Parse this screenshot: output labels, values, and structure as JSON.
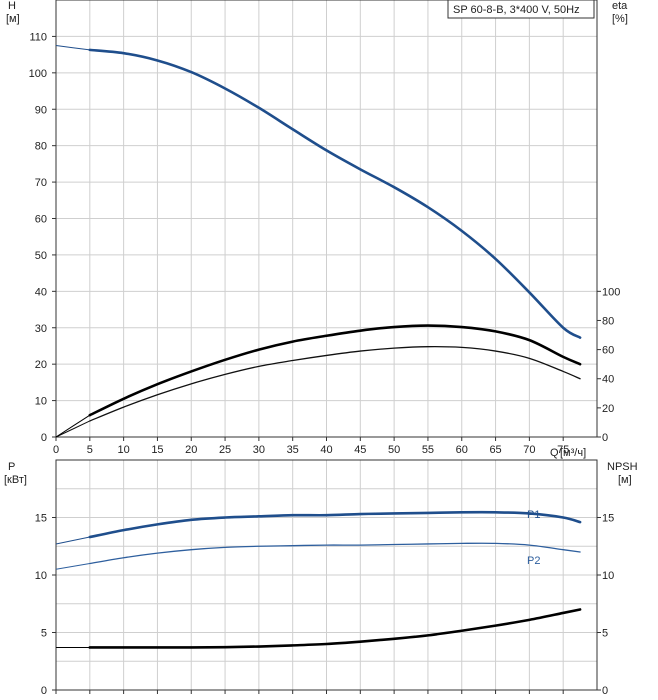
{
  "chart_data": [
    {
      "type": "line",
      "title": "SP 60-8-B, 3*400 V, 50Hz",
      "ylabel": "H",
      "ylabel_unit": "[м]",
      "y2label": "eta",
      "y2label_unit": "[%]",
      "xlabel": "Q",
      "xlabel_unit": "[м³/ч]",
      "xlim": [
        0,
        80
      ],
      "ylim": [
        0,
        120
      ],
      "y2lim": [
        0,
        100
      ],
      "x_ticks": [
        0,
        5,
        10,
        15,
        20,
        25,
        30,
        35,
        40,
        45,
        50,
        55,
        60,
        65,
        70,
        75
      ],
      "y_ticks": [
        0,
        10,
        20,
        30,
        40,
        50,
        60,
        70,
        80,
        90,
        100,
        110
      ],
      "y2_ticks": [
        0,
        20,
        40,
        60,
        80,
        100
      ],
      "grid": true,
      "series": [
        {
          "name": "",
          "axis": "left",
          "color": "#1f4e8c",
          "x": [
            5,
            10,
            15,
            20,
            25,
            30,
            35,
            40,
            45,
            50,
            55,
            60,
            65,
            70,
            75,
            77.5
          ],
          "y": [
            106.3,
            105.4,
            103.4,
            100.2,
            95.7,
            90.4,
            84.5,
            78.7,
            73.5,
            68.6,
            63.1,
            56.6,
            48.9,
            39.7,
            30.0,
            27.3
          ],
          "extrap_x": [
            0,
            5
          ],
          "extrap_y": [
            107.5,
            106.3
          ]
        },
        {
          "name": "",
          "axis": "right",
          "color": "#111111",
          "x": [
            5,
            10,
            15,
            20,
            25,
            30,
            35,
            40,
            45,
            50,
            55,
            60,
            65,
            70,
            75,
            77.5
          ],
          "y": [
            11,
            20.5,
            29,
            36.5,
            43,
            48.5,
            52.5,
            56,
            59,
            61,
            62,
            61.5,
            59,
            54,
            45,
            40
          ],
          "extrap_x": [
            0,
            5
          ],
          "extrap_y": [
            0,
            11
          ]
        },
        {
          "name": "",
          "axis": "left",
          "color": "#000000",
          "x": [
            5,
            10,
            15,
            20,
            25,
            30,
            35,
            40,
            45,
            50,
            55,
            60,
            65,
            70,
            75,
            77.5
          ],
          "y": [
            6,
            10.5,
            14.5,
            18,
            21.2,
            24,
            26.2,
            27.8,
            29.2,
            30.2,
            30.6,
            30.2,
            29,
            26.6,
            22,
            20
          ],
          "extrap_x": [
            0,
            5
          ],
          "extrap_y": [
            0,
            6
          ]
        }
      ]
    },
    {
      "type": "line",
      "ylabel": "P",
      "ylabel_unit": "[кВт]",
      "y2label": "NPSH",
      "y2label_unit": "[м]",
      "xlim": [
        0,
        80
      ],
      "ylim": [
        0,
        20
      ],
      "y2lim": [
        0,
        20
      ],
      "y_ticks": [
        0,
        5,
        10,
        15
      ],
      "y2_ticks": [
        0,
        5,
        10,
        15
      ],
      "grid": true,
      "series": [
        {
          "name": "P1",
          "color": "#1f4e8c",
          "x": [
            5,
            10,
            15,
            20,
            25,
            30,
            35,
            40,
            45,
            50,
            55,
            60,
            65,
            70,
            75,
            77.5
          ],
          "y": [
            13.3,
            13.9,
            14.4,
            14.8,
            15.0,
            15.1,
            15.2,
            15.2,
            15.3,
            15.35,
            15.4,
            15.45,
            15.45,
            15.35,
            15.0,
            14.6
          ],
          "extrap_x": [
            0,
            5
          ],
          "extrap_y": [
            12.7,
            13.3
          ]
        },
        {
          "name": "P2",
          "color": "#2e5f9e",
          "x": [
            5,
            10,
            15,
            20,
            25,
            30,
            35,
            40,
            45,
            50,
            55,
            60,
            65,
            70,
            75,
            77.5
          ],
          "y": [
            11.0,
            11.5,
            11.9,
            12.2,
            12.4,
            12.5,
            12.55,
            12.6,
            12.6,
            12.65,
            12.7,
            12.75,
            12.75,
            12.6,
            12.2,
            12.0
          ],
          "extrap_x": [
            0,
            5
          ],
          "extrap_y": [
            10.5,
            11.0
          ]
        },
        {
          "name": "",
          "axis": "right",
          "color": "#000000",
          "x": [
            5,
            10,
            15,
            20,
            25,
            30,
            35,
            40,
            45,
            50,
            55,
            60,
            65,
            70,
            75,
            77.5
          ],
          "y": [
            3.7,
            3.7,
            3.7,
            3.7,
            3.72,
            3.78,
            3.88,
            4.0,
            4.2,
            4.45,
            4.75,
            5.15,
            5.6,
            6.1,
            6.7,
            7.0
          ],
          "extrap_x": [
            0,
            5
          ],
          "extrap_y": [
            3.7,
            3.7
          ]
        }
      ]
    }
  ]
}
